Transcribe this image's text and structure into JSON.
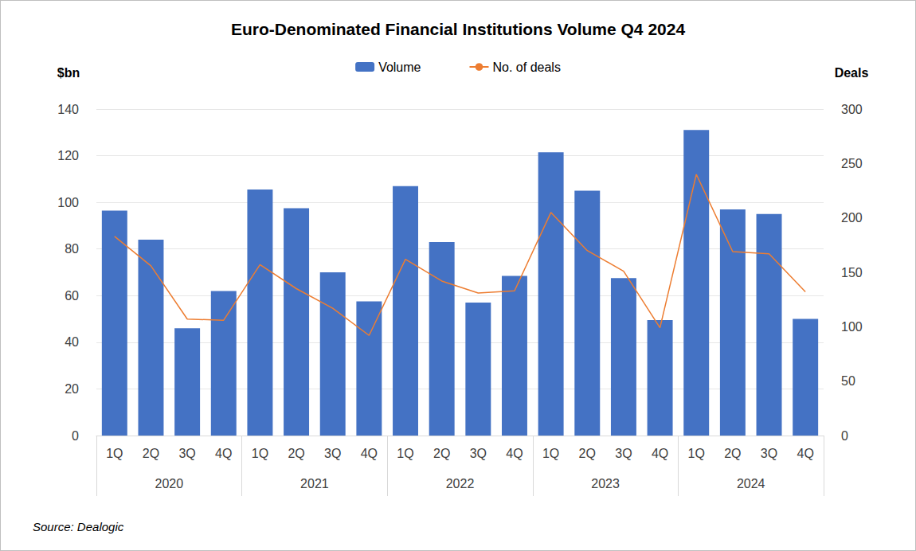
{
  "chart_data": {
    "type": "bar",
    "title": "Euro-Denominated Financial Institutions Volume Q4 2024",
    "categories": [
      "1Q",
      "2Q",
      "3Q",
      "4Q",
      "1Q",
      "2Q",
      "3Q",
      "4Q",
      "1Q",
      "2Q",
      "3Q",
      "4Q",
      "1Q",
      "2Q",
      "3Q",
      "4Q",
      "1Q",
      "2Q",
      "3Q",
      "4Q"
    ],
    "groups": [
      {
        "label": "2020",
        "size": 4
      },
      {
        "label": "2021",
        "size": 4
      },
      {
        "label": "2022",
        "size": 4
      },
      {
        "label": "2023",
        "size": 4
      },
      {
        "label": "2024",
        "size": 4
      }
    ],
    "y_label": "$bn",
    "y2_label": "Deals",
    "ylim": [
      0,
      140
    ],
    "yticks": [
      0,
      20,
      40,
      60,
      80,
      100,
      120,
      140
    ],
    "y2lim": [
      0,
      300
    ],
    "y2ticks": [
      0,
      50,
      100,
      150,
      200,
      250,
      300
    ],
    "grid": true,
    "legend": "top",
    "source": "Source: Dealogic",
    "series": [
      {
        "name": "Volume",
        "type": "bar",
        "color": "#4472c4",
        "values": [
          96.5,
          84,
          46,
          62,
          105.5,
          97.5,
          70,
          57.5,
          107,
          83,
          57,
          68.5,
          121.5,
          105,
          67.5,
          49.5,
          131,
          97,
          95,
          50
        ]
      },
      {
        "name": "No. of deals",
        "type": "line",
        "color": "#ed7d31",
        "axis": "y2",
        "values": [
          183,
          156,
          107,
          106,
          157,
          135,
          117,
          92,
          162,
          142,
          131,
          133,
          205,
          170,
          151,
          99,
          240,
          169,
          167,
          132
        ]
      }
    ]
  }
}
